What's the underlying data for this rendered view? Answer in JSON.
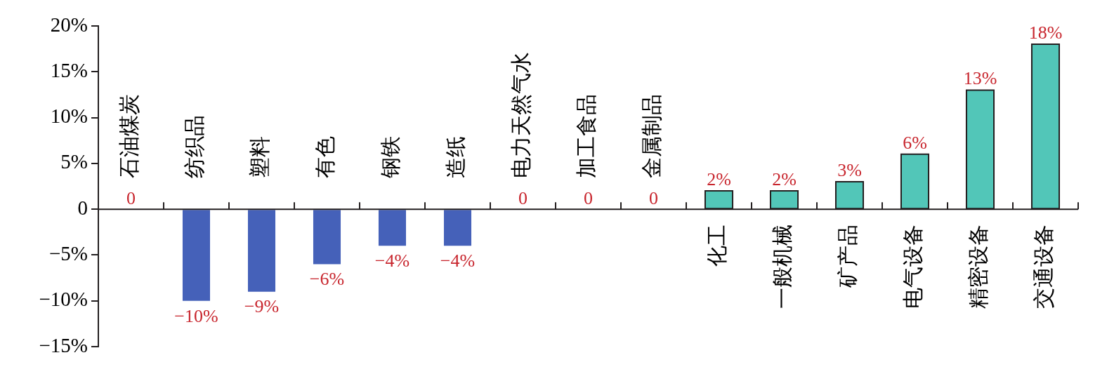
{
  "chart_data": {
    "type": "bar",
    "categories": [
      "石油煤炭",
      "纺织品",
      "塑料",
      "有色",
      "钢铁",
      "造纸",
      "电力天然气水",
      "加工食品",
      "金属制品",
      "化工",
      "一般机械",
      "矿产品",
      "电气设备",
      "精密设备",
      "交通设备"
    ],
    "values": [
      0,
      -10,
      -9,
      -6,
      -4,
      -4,
      0,
      0,
      0,
      2,
      2,
      3,
      6,
      13,
      18
    ],
    "colors": [
      "#4561b9",
      "#4561b9",
      "#4561b9",
      "#4561b9",
      "#4561b9",
      "#4561b9",
      "#4561b9",
      "#4561b9",
      "#4561b9",
      "#52c6b8",
      "#52c6b8",
      "#52c6b8",
      "#52c6b8",
      "#52c6b8",
      "#52c6b8"
    ],
    "value_labels": [
      "0",
      "−10%",
      "−9%",
      "−6%",
      "−4%",
      "−4%",
      "0",
      "0",
      "0",
      "2%",
      "2%",
      "3%",
      "6%",
      "13%",
      "18%"
    ],
    "ylim": [
      -15,
      20
    ],
    "yticks": [
      {
        "value": -15,
        "label": "−15%"
      },
      {
        "value": -10,
        "label": "−10%"
      },
      {
        "value": -5,
        "label": "−5%"
      },
      0,
      {
        "value": 5,
        "label": "5%"
      },
      {
        "value": 10,
        "label": "10%"
      },
      {
        "value": 15,
        "label": "15%"
      },
      {
        "value": 20,
        "label": "20%"
      }
    ],
    "grid": false,
    "legend": false
  }
}
